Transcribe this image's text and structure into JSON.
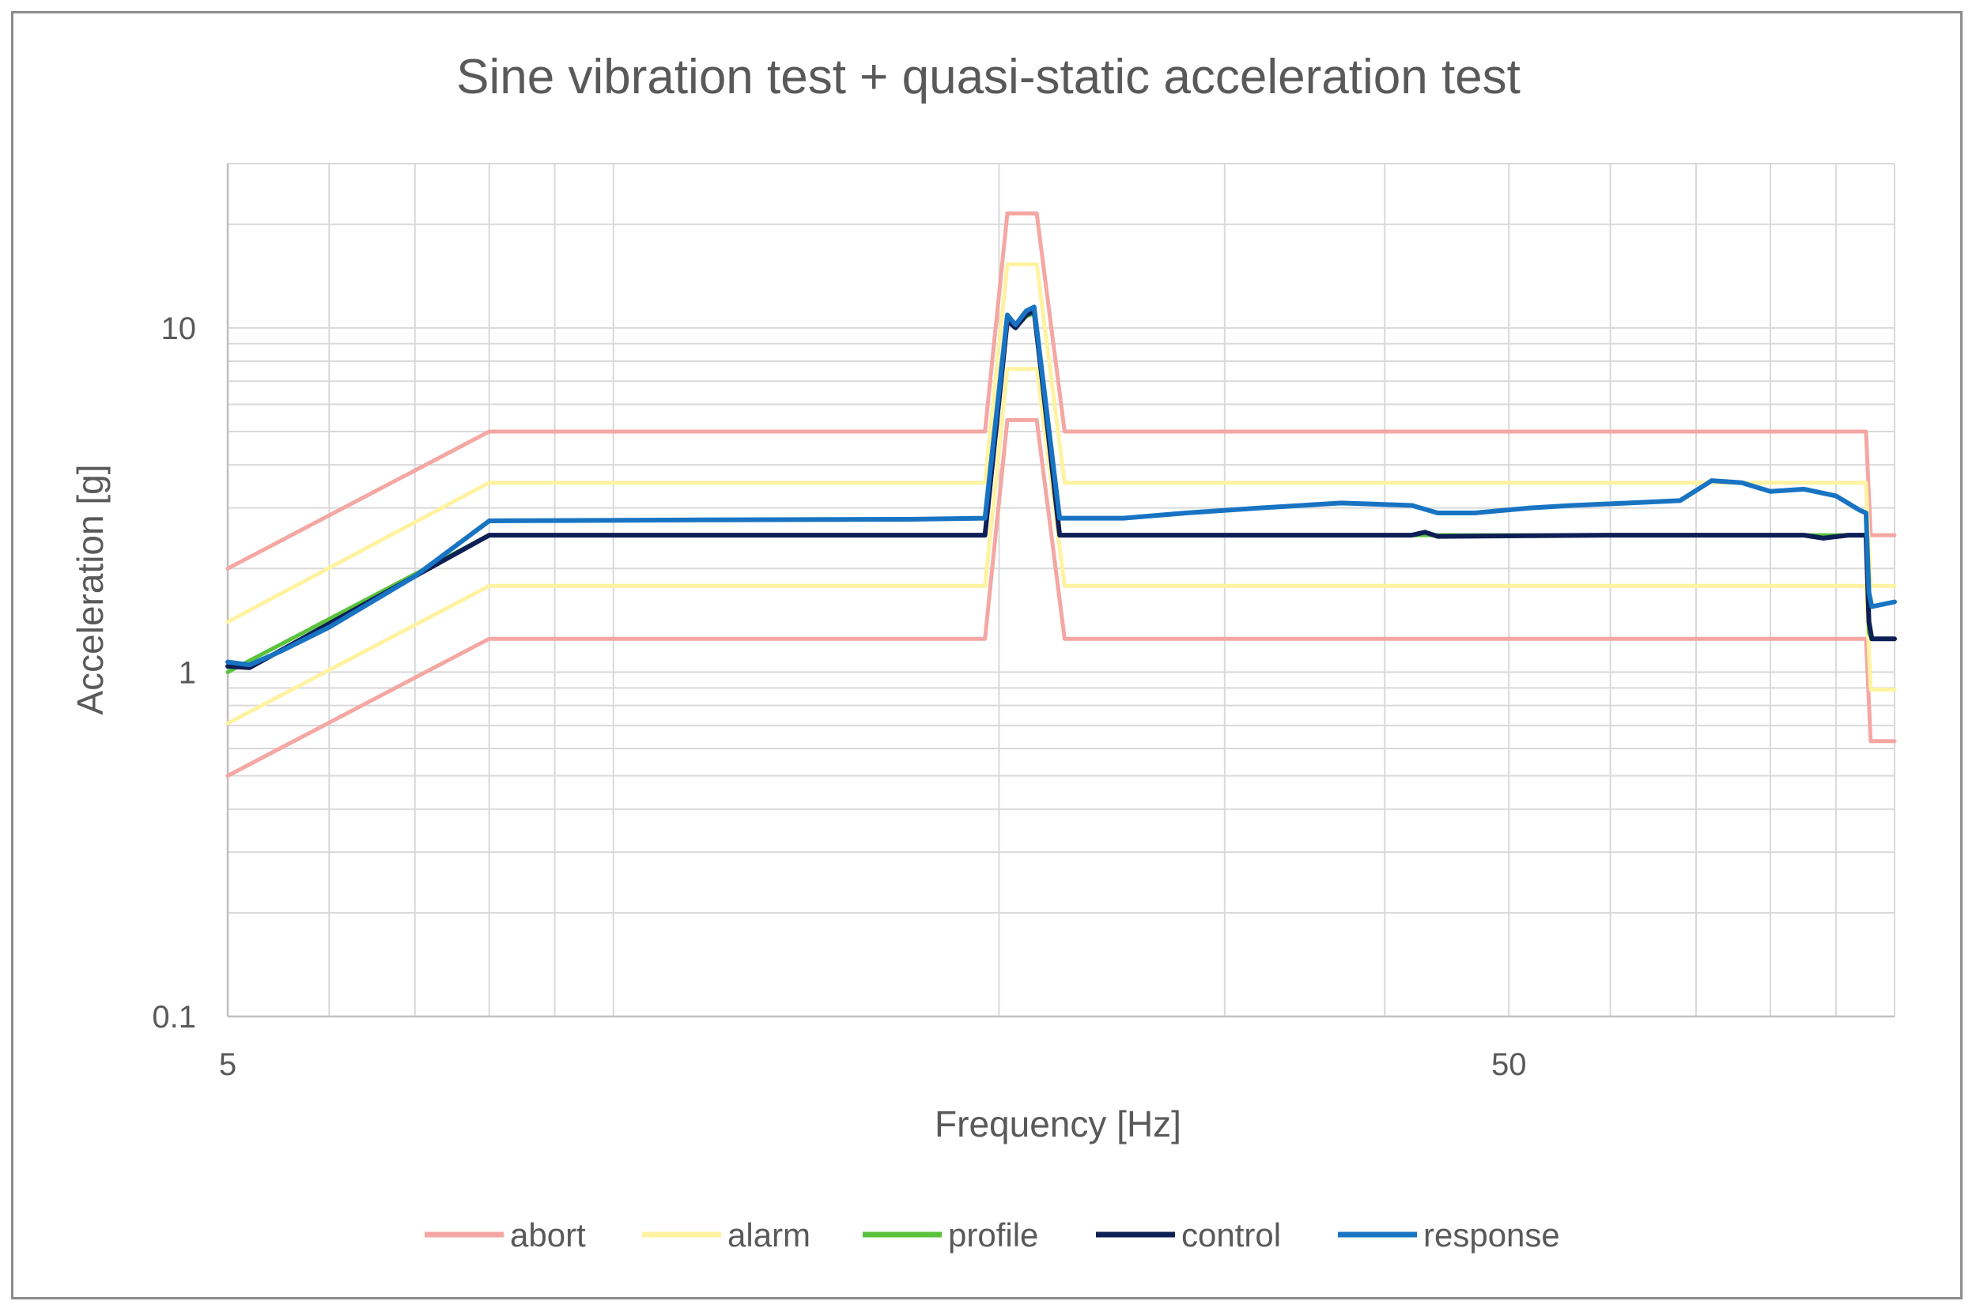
{
  "chart_data": {
    "type": "line",
    "title": "Sine vibration test + quasi-static acceleration test",
    "xlabel": "Frequency [Hz]",
    "ylabel": "Acceleration [g]",
    "x_scale": "log",
    "y_scale": "log",
    "xlim": [
      5,
      100
    ],
    "ylim": [
      0.1,
      30
    ],
    "x_ticks": [
      {
        "value": 5,
        "label": "5"
      },
      {
        "value": 50,
        "label": "50"
      }
    ],
    "y_ticks": [
      {
        "value": 0.1,
        "label": "0.1"
      },
      {
        "value": 1,
        "label": "1"
      },
      {
        "value": 10,
        "label": "10"
      }
    ],
    "grid": true,
    "legend_position": "bottom",
    "series": [
      {
        "name": "abort",
        "color": "#f4a7a3",
        "points": [
          [
            5,
            2.0
          ],
          [
            8,
            5.0
          ],
          [
            19.5,
            5.0
          ],
          [
            20.3,
            21.5
          ],
          [
            21.4,
            21.5
          ],
          [
            22.5,
            5.0
          ],
          [
            95,
            5.0
          ],
          [
            95.8,
            2.5
          ],
          [
            100,
            2.5
          ]
        ]
      },
      {
        "name": "abort",
        "color": "#f4a7a3",
        "points": [
          [
            5,
            0.5
          ],
          [
            8,
            1.25
          ],
          [
            19.5,
            1.25
          ],
          [
            20.3,
            5.4
          ],
          [
            21.4,
            5.4
          ],
          [
            22.5,
            1.25
          ],
          [
            95,
            1.25
          ],
          [
            95.8,
            0.63
          ],
          [
            100,
            0.63
          ]
        ]
      },
      {
        "name": "alarm",
        "color": "#fff2a1",
        "points": [
          [
            5,
            1.4
          ],
          [
            8,
            3.55
          ],
          [
            19.5,
            3.55
          ],
          [
            20.3,
            15.3
          ],
          [
            21.4,
            15.3
          ],
          [
            22.5,
            3.55
          ],
          [
            95,
            3.55
          ],
          [
            95.8,
            1.78
          ],
          [
            100,
            1.78
          ]
        ]
      },
      {
        "name": "alarm",
        "color": "#fff2a1",
        "points": [
          [
            5,
            0.71
          ],
          [
            8,
            1.78
          ],
          [
            19.5,
            1.78
          ],
          [
            20.3,
            7.6
          ],
          [
            21.4,
            7.6
          ],
          [
            22.5,
            1.78
          ],
          [
            95,
            1.78
          ],
          [
            95.8,
            0.89
          ],
          [
            100,
            0.89
          ]
        ]
      },
      {
        "name": "profile",
        "color": "#5ac33c",
        "points": [
          [
            5,
            1.0
          ],
          [
            8,
            2.5
          ],
          [
            19.5,
            2.5
          ],
          [
            20.3,
            10.7
          ],
          [
            20.6,
            10.0
          ],
          [
            21.0,
            10.8
          ],
          [
            21.3,
            11.0
          ],
          [
            21.6,
            7.0
          ],
          [
            22.3,
            2.5
          ],
          [
            95,
            2.5
          ],
          [
            95.5,
            1.3
          ],
          [
            96,
            1.25
          ],
          [
            100,
            1.25
          ]
        ]
      },
      {
        "name": "control",
        "color": "#0d1f55",
        "points": [
          [
            5,
            1.04
          ],
          [
            5.2,
            1.03
          ],
          [
            8,
            2.5
          ],
          [
            19.5,
            2.5
          ],
          [
            20.3,
            10.5
          ],
          [
            20.6,
            10.0
          ],
          [
            21.0,
            10.9
          ],
          [
            21.3,
            11.2
          ],
          [
            21.6,
            7.2
          ],
          [
            22.3,
            2.5
          ],
          [
            30,
            2.5
          ],
          [
            42,
            2.5
          ],
          [
            43,
            2.55
          ],
          [
            44,
            2.48
          ],
          [
            60,
            2.5
          ],
          [
            75,
            2.5
          ],
          [
            85,
            2.5
          ],
          [
            88,
            2.45
          ],
          [
            92,
            2.5
          ],
          [
            95,
            2.5
          ],
          [
            95.5,
            1.4
          ],
          [
            96,
            1.25
          ],
          [
            100,
            1.25
          ]
        ]
      },
      {
        "name": "response",
        "color": "#1874c3",
        "points": [
          [
            5,
            1.07
          ],
          [
            5.2,
            1.05
          ],
          [
            5.5,
            1.15
          ],
          [
            6,
            1.35
          ],
          [
            7,
            1.9
          ],
          [
            8,
            2.75
          ],
          [
            12,
            2.77
          ],
          [
            17,
            2.78
          ],
          [
            19.5,
            2.8
          ],
          [
            20.3,
            10.9
          ],
          [
            20.6,
            10.2
          ],
          [
            21.0,
            11.2
          ],
          [
            21.3,
            11.5
          ],
          [
            21.6,
            7.5
          ],
          [
            22.3,
            2.8
          ],
          [
            25,
            2.8
          ],
          [
            28,
            2.9
          ],
          [
            32,
            3.0
          ],
          [
            37,
            3.1
          ],
          [
            42,
            3.05
          ],
          [
            44,
            2.9
          ],
          [
            47,
            2.9
          ],
          [
            52,
            3.0
          ],
          [
            56,
            3.05
          ],
          [
            62,
            3.1
          ],
          [
            68,
            3.15
          ],
          [
            72,
            3.6
          ],
          [
            76,
            3.55
          ],
          [
            80,
            3.35
          ],
          [
            85,
            3.4
          ],
          [
            90,
            3.25
          ],
          [
            94,
            2.95
          ],
          [
            95,
            2.9
          ],
          [
            95.5,
            1.7
          ],
          [
            96,
            1.55
          ],
          [
            100,
            1.6
          ]
        ]
      }
    ],
    "legend": [
      {
        "name": "abort",
        "color": "#f4a7a3"
      },
      {
        "name": "alarm",
        "color": "#fff2a1"
      },
      {
        "name": "profile",
        "color": "#5ac33c"
      },
      {
        "name": "control",
        "color": "#0d1f55"
      },
      {
        "name": "response",
        "color": "#1874c3"
      }
    ]
  }
}
